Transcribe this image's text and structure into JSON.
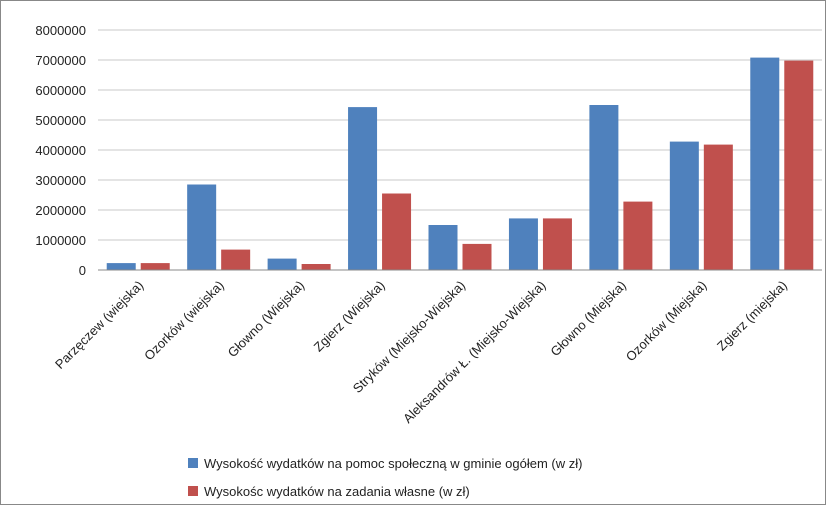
{
  "chart_data": {
    "type": "bar",
    "categories": [
      "Parzęczew (wiejska)",
      "Ozorków (wiejska)",
      "Głowno (Wiejska)",
      "Zgierz (Wiejska)",
      "Stryków (Miejsko-Wiejska)",
      "Aleksandrów Ł. (Miejsko-Wiejska)",
      "Głowno (Miejska)",
      "Ozorków (Miejska)",
      "Zgierz (miejska)"
    ],
    "series": [
      {
        "name": "Wysokość wydatków na pomoc społeczną w gminie ogółem (w zł)",
        "color": "#4F81BD",
        "values": [
          230000,
          2850000,
          380000,
          5430000,
          1500000,
          1720000,
          5500000,
          4280000,
          7080000
        ]
      },
      {
        "name": "Wysokośc wydatków na zadania własne (w zł)",
        "color": "#C0504D",
        "values": [
          230000,
          680000,
          200000,
          2550000,
          870000,
          1720000,
          2280000,
          4180000,
          6980000
        ]
      }
    ],
    "ylim": [
      0,
      8000000
    ],
    "yticks": [
      "0",
      "1000000",
      "2000000",
      "3000000",
      "4000000",
      "5000000",
      "6000000",
      "7000000",
      "8000000"
    ],
    "grid": true,
    "legend_position": "bottom"
  }
}
